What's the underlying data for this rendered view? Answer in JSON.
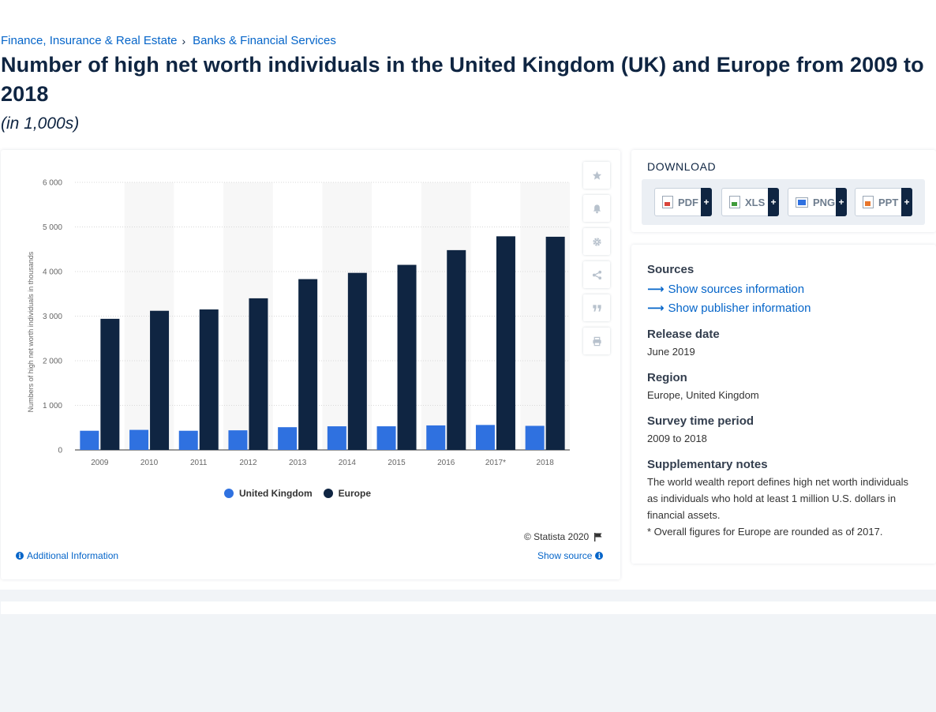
{
  "breadcrumb": {
    "category": "Finance, Insurance & Real Estate",
    "separator": "›",
    "subcategory": "Banks & Financial Services"
  },
  "page": {
    "title": "Number of high net worth individuals in the United Kingdom (UK) and Europe from 2009 to 2018",
    "subtitle": "(in 1,000s)"
  },
  "chart_data": {
    "type": "bar",
    "categories": [
      "2009",
      "2010",
      "2011",
      "2012",
      "2013",
      "2014",
      "2015",
      "2016",
      "2017*",
      "2018"
    ],
    "series": [
      {
        "name": "United Kingdom",
        "color": "#2f71e0",
        "values": [
          430,
          450,
          430,
          440,
          510,
          530,
          530,
          550,
          560,
          540
        ]
      },
      {
        "name": "Europe",
        "color": "#0f2542",
        "values": [
          2940,
          3120,
          3150,
          3400,
          3830,
          3970,
          4150,
          4480,
          4790,
          4780
        ]
      }
    ],
    "ylabel": "Numbers of high net worth individuals in thousands",
    "xlabel": "",
    "ylim": [
      0,
      6000
    ],
    "yticks": [
      "0",
      "1 000",
      "2 000",
      "3 000",
      "4 000",
      "5 000",
      "6 000"
    ],
    "grid": true,
    "legend_position": "bottom-center"
  },
  "chart_footer": {
    "copyright": "© Statista 2020",
    "additional_info": "Additional Information",
    "show_source": "Show source"
  },
  "tools": [
    {
      "icon": "star-icon"
    },
    {
      "icon": "bell-icon"
    },
    {
      "icon": "gear-icon"
    },
    {
      "icon": "share-icon"
    },
    {
      "icon": "quote-icon"
    },
    {
      "icon": "print-icon"
    }
  ],
  "download": {
    "title": "DOWNLOAD",
    "buttons": [
      {
        "label": "PDF",
        "icon_color": "#d9443a"
      },
      {
        "label": "XLS",
        "icon_color": "#3f9b3a"
      },
      {
        "label": "PNG",
        "icon_color": "#2f71e0"
      },
      {
        "label": "PPT",
        "icon_color": "#e8762c"
      }
    ],
    "plus": "+"
  },
  "sources": {
    "heading": "Sources",
    "show_sources": "Show sources information",
    "show_publisher": "Show publisher information",
    "release_heading": "Release date",
    "release_value": "June 2019",
    "region_heading": "Region",
    "region_value": "Europe, United Kingdom",
    "survey_heading": "Survey time period",
    "survey_value": "2009 to 2018",
    "notes_heading": "Supplementary notes",
    "notes_1": "The world wealth report defines high net worth individuals as individuals who hold at least 1 million U.S. dollars in financial assets.",
    "notes_2": "* Overall figures for Europe are rounded as of 2017."
  }
}
